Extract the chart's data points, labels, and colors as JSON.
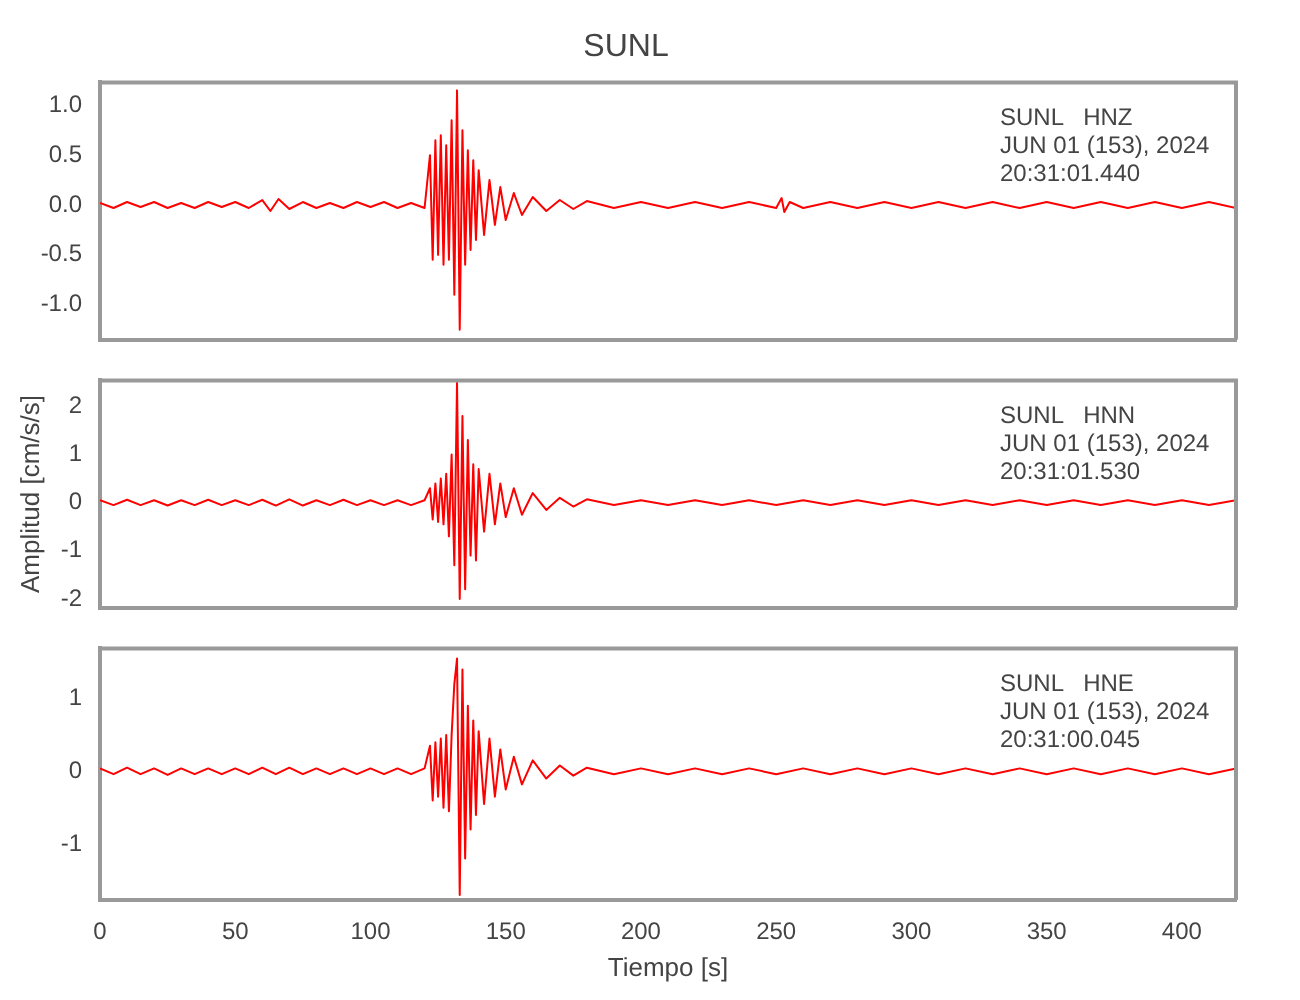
{
  "chart_data": [
    {
      "type": "line",
      "title": "SUNL",
      "annotations": [
        "SUNL   HNZ",
        "JUN 01 (153), 2024",
        "20:31:01.440"
      ],
      "xlim": [
        0,
        420
      ],
      "xticks": [
        0,
        50,
        100,
        150,
        200,
        250,
        300,
        350,
        400
      ],
      "ylim": [
        -1.35,
        1.23
      ],
      "yticks": [
        {
          "value": -1,
          "label": "-1.0"
        },
        {
          "value": -0.5,
          "label": "-0.5"
        },
        {
          "value": 0,
          "label": "0.0"
        },
        {
          "value": 0.5,
          "label": "0.5"
        },
        {
          "value": 1,
          "label": "1.0"
        }
      ],
      "tick_labels": "y",
      "grid": false,
      "legend": false,
      "marker": "none",
      "x": [
        0,
        5,
        10,
        15,
        20,
        25,
        30,
        35,
        40,
        45,
        50,
        55,
        60,
        63,
        66,
        70,
        75,
        80,
        85,
        90,
        95,
        100,
        105,
        110,
        115,
        120,
        122,
        123,
        124,
        125,
        126,
        127,
        128,
        129,
        130,
        131,
        132,
        133,
        134,
        135,
        136,
        137,
        138,
        139,
        140,
        142,
        144,
        146,
        148,
        150,
        153,
        156,
        160,
        165,
        170,
        175,
        180,
        190,
        200,
        210,
        220,
        230,
        240,
        250,
        252,
        253,
        255,
        260,
        270,
        280,
        290,
        300,
        310,
        320,
        330,
        340,
        350,
        360,
        370,
        380,
        390,
        400,
        410,
        420
      ],
      "series": [
        {
          "color": "#ff0000",
          "values": [
            0.02,
            -0.03,
            0.03,
            -0.02,
            0.03,
            -0.03,
            0.02,
            -0.03,
            0.03,
            -0.02,
            0.03,
            -0.03,
            0.05,
            -0.06,
            0.06,
            -0.04,
            0.03,
            -0.03,
            0.02,
            -0.03,
            0.03,
            -0.02,
            0.03,
            -0.03,
            0.02,
            -0.03,
            0.5,
            -0.55,
            0.65,
            -0.5,
            0.7,
            -0.6,
            0.6,
            -0.55,
            0.85,
            -0.9,
            1.15,
            -1.25,
            0.75,
            -0.6,
            0.55,
            -0.45,
            0.45,
            -0.35,
            0.35,
            -0.3,
            0.25,
            -0.2,
            0.18,
            -0.15,
            0.12,
            -0.1,
            0.08,
            -0.06,
            0.05,
            -0.04,
            0.04,
            -0.03,
            0.03,
            -0.03,
            0.03,
            -0.03,
            0.03,
            -0.03,
            0.07,
            -0.07,
            0.03,
            -0.03,
            0.03,
            -0.03,
            0.03,
            -0.03,
            0.03,
            -0.03,
            0.03,
            -0.03,
            0.03,
            -0.03,
            0.03,
            -0.03,
            0.03,
            -0.03,
            0.03,
            -0.03
          ]
        }
      ]
    },
    {
      "type": "line",
      "ylabel": "Amplitud [cm/s/s]",
      "annotations": [
        "SUNL   HNN",
        "JUN 01 (153), 2024",
        "20:31:01.530"
      ],
      "xlim": [
        0,
        420
      ],
      "xticks": [
        0,
        50,
        100,
        150,
        200,
        250,
        300,
        350,
        400
      ],
      "ylim": [
        -2.18,
        2.54
      ],
      "yticks": [
        -2,
        -1,
        0,
        1,
        2
      ],
      "tick_labels": "y",
      "grid": false,
      "legend": false,
      "marker": "none",
      "x": [
        0,
        5,
        10,
        15,
        20,
        25,
        30,
        35,
        40,
        45,
        50,
        55,
        60,
        65,
        70,
        75,
        80,
        85,
        90,
        95,
        100,
        105,
        110,
        115,
        120,
        122,
        123,
        124,
        125,
        126,
        127,
        128,
        129,
        130,
        131,
        132,
        133,
        134,
        135,
        136,
        137,
        138,
        139,
        140,
        142,
        144,
        146,
        148,
        150,
        153,
        156,
        160,
        165,
        170,
        175,
        180,
        190,
        200,
        210,
        220,
        230,
        240,
        250,
        260,
        270,
        280,
        290,
        300,
        310,
        320,
        330,
        340,
        350,
        360,
        370,
        380,
        390,
        400,
        410,
        420
      ],
      "series": [
        {
          "color": "#ff0000",
          "values": [
            0.05,
            -0.05,
            0.06,
            -0.05,
            0.05,
            -0.06,
            0.05,
            -0.05,
            0.06,
            -0.05,
            0.05,
            -0.05,
            0.06,
            -0.06,
            0.07,
            -0.06,
            0.05,
            -0.05,
            0.06,
            -0.05,
            0.05,
            -0.05,
            0.05,
            -0.05,
            0.05,
            0.3,
            -0.35,
            0.4,
            -0.4,
            0.5,
            -0.45,
            0.6,
            -0.7,
            1.0,
            -1.3,
            2.5,
            -2.0,
            1.8,
            -1.8,
            1.3,
            -1.1,
            0.8,
            -1.2,
            0.7,
            -0.6,
            0.6,
            -0.45,
            0.4,
            -0.3,
            0.3,
            -0.25,
            0.2,
            -0.15,
            0.1,
            -0.08,
            0.07,
            -0.05,
            0.05,
            -0.05,
            0.05,
            -0.05,
            0.05,
            -0.05,
            0.05,
            -0.05,
            0.05,
            -0.05,
            0.05,
            -0.05,
            0.05,
            -0.05,
            0.05,
            -0.05,
            0.05,
            -0.05,
            0.05,
            -0.05,
            0.05,
            -0.05,
            0.05
          ]
        }
      ]
    },
    {
      "type": "line",
      "xlabel": "Tiempo [s]",
      "annotations": [
        "SUNL   HNE",
        "JUN 01 (153), 2024",
        "20:31:00.045"
      ],
      "xlim": [
        0,
        420
      ],
      "xticks": [
        0,
        50,
        100,
        150,
        200,
        250,
        300,
        350,
        400
      ],
      "ylim": [
        -1.77,
        1.69
      ],
      "yticks": [
        -1,
        0,
        1
      ],
      "grid": false,
      "legend": false,
      "marker": "none",
      "x": [
        0,
        5,
        10,
        15,
        20,
        25,
        30,
        35,
        40,
        45,
        50,
        55,
        60,
        65,
        70,
        75,
        80,
        85,
        90,
        95,
        100,
        105,
        110,
        115,
        120,
        122,
        123,
        124,
        125,
        126,
        127,
        128,
        129,
        130,
        131,
        132,
        133,
        134,
        135,
        136,
        137,
        138,
        139,
        140,
        142,
        144,
        146,
        148,
        150,
        153,
        156,
        160,
        165,
        170,
        175,
        180,
        190,
        200,
        210,
        220,
        230,
        240,
        250,
        260,
        270,
        280,
        290,
        300,
        310,
        320,
        330,
        340,
        350,
        360,
        370,
        380,
        390,
        400,
        410,
        420
      ],
      "series": [
        {
          "color": "#ff0000",
          "values": [
            0.04,
            -0.04,
            0.05,
            -0.04,
            0.04,
            -0.05,
            0.04,
            -0.04,
            0.04,
            -0.04,
            0.04,
            -0.04,
            0.05,
            -0.04,
            0.05,
            -0.04,
            0.04,
            -0.04,
            0.04,
            -0.04,
            0.04,
            -0.04,
            0.04,
            -0.04,
            0.04,
            0.35,
            -0.4,
            0.4,
            -0.35,
            0.45,
            -0.5,
            0.5,
            -0.55,
            0.5,
            1.2,
            1.55,
            -1.7,
            1.4,
            -1.2,
            0.9,
            -0.8,
            0.7,
            -0.6,
            0.55,
            -0.45,
            0.45,
            -0.35,
            0.3,
            -0.25,
            0.2,
            -0.18,
            0.15,
            -0.1,
            0.08,
            -0.06,
            0.05,
            -0.04,
            0.04,
            -0.04,
            0.04,
            -0.04,
            0.04,
            -0.04,
            0.04,
            -0.04,
            0.04,
            -0.04,
            0.04,
            -0.04,
            0.04,
            -0.04,
            0.04,
            -0.04,
            0.04,
            -0.04,
            0.04,
            -0.04,
            0.04,
            -0.04,
            0.04
          ]
        }
      ]
    }
  ]
}
